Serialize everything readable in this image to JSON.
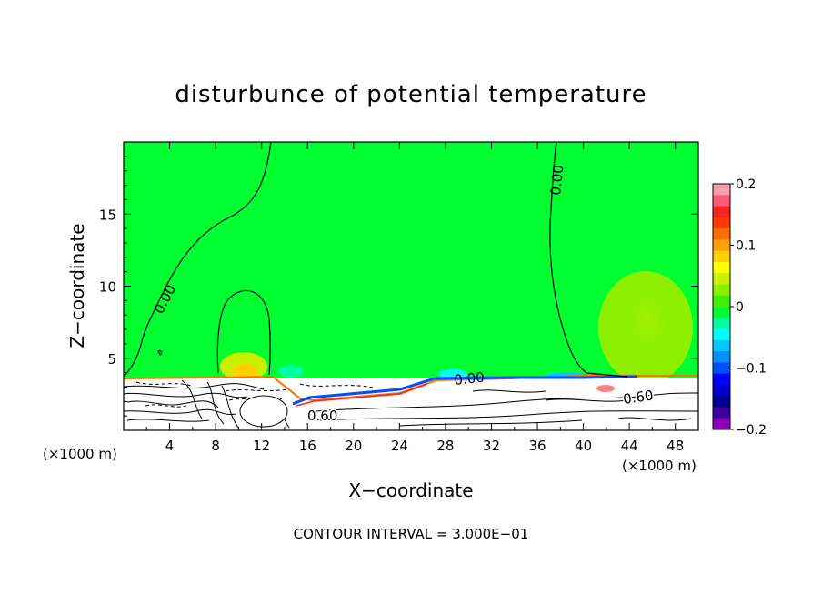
{
  "chart_data": {
    "type": "heatmap",
    "title": "disturbunce of potential temperature",
    "xlabel": "X−coordinate",
    "ylabel": "Z−coordinate",
    "x_unit_left": "(×1000 m)",
    "x_unit_right": "(×1000 m)",
    "xlim": [
      0,
      50
    ],
    "ylim": [
      0,
      20
    ],
    "x_ticks": [
      4,
      8,
      12,
      16,
      20,
      24,
      28,
      32,
      36,
      40,
      44,
      48
    ],
    "y_ticks": [
      5,
      10,
      15
    ],
    "contour_interval_text": "CONTOUR INTERVAL = 3.000E−01",
    "contour_labels": [
      "0.00",
      "0.00",
      "0.00",
      "0.60",
      "0.60"
    ],
    "colorbar": {
      "min": -0.2,
      "max": 0.2,
      "tick_values": [
        0.2,
        0.1,
        0,
        -0.1,
        -0.2
      ],
      "tick_labels": [
        "0.2",
        "0.1",
        "0",
        "−0.1",
        "−0.2"
      ],
      "colors": [
        "#f8a0b0",
        "#ff5a78",
        "#ff2020",
        "#ff3a00",
        "#ff7000",
        "#ffa000",
        "#ffd000",
        "#ffff00",
        "#c8f000",
        "#8cf000",
        "#40f000",
        "#00ff30",
        "#00ffa0",
        "#00ffff",
        "#00c8ff",
        "#0090ff",
        "#0050ff",
        "#0000ff",
        "#0000c8",
        "#000090",
        "#3c00a0",
        "#8c00c0"
      ]
    },
    "background_value": 0,
    "background_color": "#00ff30",
    "colors": {
      "field_green": "#00ff30",
      "warm_blob_far": "#8cf000",
      "warm_blob_core": "#ffd000",
      "cool_spot": "#00ffff",
      "lower_layer": "#ffffff"
    }
  }
}
